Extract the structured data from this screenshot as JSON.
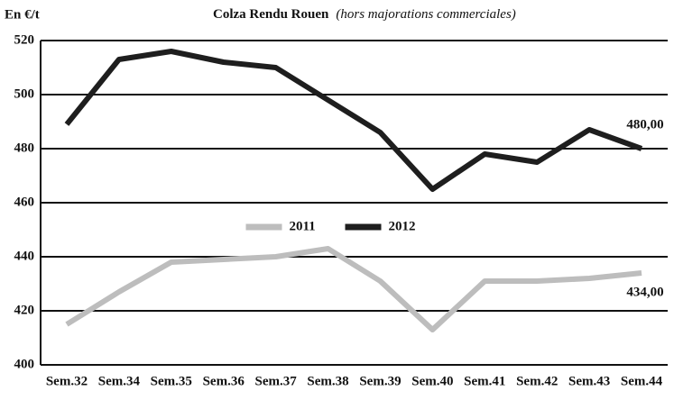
{
  "chart_data": {
    "type": "line",
    "title": "Colza Rendu Rouen",
    "subtitle": "(hors majorations commerciales)",
    "y_label": "En €/t",
    "categories": [
      "Sem.32",
      "Sem.34",
      "Sem.35",
      "Sem.36",
      "Sem.37",
      "Sem.38",
      "Sem.39",
      "Sem.40",
      "Sem.41",
      "Sem.42",
      "Sem.43",
      "Sem.44"
    ],
    "series": [
      {
        "name": "2012",
        "color": "#1e1e1e",
        "values": [
          489,
          513,
          516,
          512,
          510,
          498,
          486,
          465,
          478,
          475,
          487,
          480
        ],
        "value_labels": [
          null,
          null,
          null,
          null,
          null,
          null,
          null,
          null,
          null,
          null,
          null,
          "480,00"
        ]
      },
      {
        "name": "2011",
        "color": "#bdbdbd",
        "values": [
          415,
          427,
          438,
          439,
          440,
          443,
          431,
          413,
          431,
          431,
          432,
          434
        ],
        "value_labels": [
          null,
          null,
          null,
          null,
          null,
          null,
          null,
          null,
          null,
          null,
          null,
          "434,00"
        ]
      }
    ],
    "ylim": [
      400,
      520
    ],
    "yticks": [
      400,
      420,
      440,
      460,
      480,
      500,
      520
    ],
    "grid": true,
    "legend": "center"
  }
}
